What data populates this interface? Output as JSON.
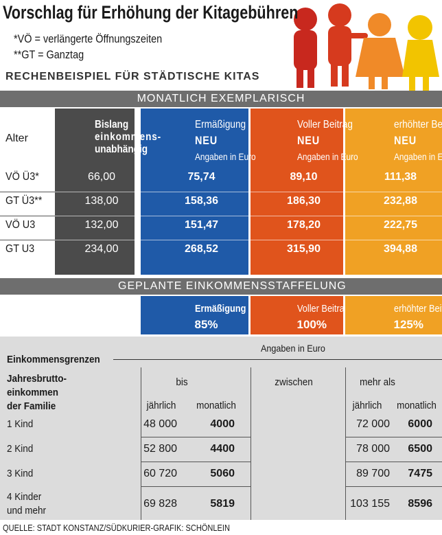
{
  "header": {
    "title": "Vorschlag für Erhöhung der Kitagebühren",
    "notes": [
      "*VÖ = verlängerte Öffnungszeiten",
      "**GT =  Ganztag"
    ],
    "subtitle": "RECHENBEISPIEL FÜR STÄDTISCHE KITAS"
  },
  "table1": {
    "banner": "MONATLICH EXEMPLARISCH",
    "alter": "Alter",
    "columns": [
      {
        "lines": [
          "Bislang",
          "einkommens-",
          "unabhängig"
        ]
      },
      {
        "lines": [
          "Ermäßigung",
          "NEU"
        ],
        "unit": "Angaben in Euro"
      },
      {
        "lines": [
          "Voller Beitrag",
          "NEU"
        ],
        "unit": "Angaben in Euro"
      },
      {
        "lines": [
          "erhöhter Beitrag",
          "NEU"
        ],
        "unit": "Angaben in Euro"
      }
    ],
    "rows": [
      [
        "VÖ Ü3*",
        "66,00",
        "75,74",
        "89,10",
        "111,38"
      ],
      [
        "GT Ü3**",
        "138,00",
        "158,36",
        "186,30",
        "232,88"
      ],
      [
        "VÖ U3",
        "132,00",
        "151,47",
        "178,20",
        "222,75"
      ],
      [
        "GT U3",
        "234,00",
        "268,52",
        "315,90",
        "394,88"
      ]
    ]
  },
  "table2": {
    "banner": "GEPLANTE EINKOMMENSSTAFFELUNG",
    "boxes": [
      {
        "name": "Ermäßigung",
        "pct": "85%"
      },
      {
        "name": "Voller Beitrag",
        "pct": "100%"
      },
      {
        "name": "erhöhter Beitrag",
        "pct": "125%"
      }
    ]
  },
  "income": {
    "unit": "Angaben in Euro",
    "title": "Einkommensgrenzen",
    "rowhead": [
      "Jahresbrutto-",
      "einkommen",
      "der Familie"
    ],
    "groups": [
      "bis",
      "zwischen",
      "mehr als"
    ],
    "subcols": [
      "jährlich",
      "monatlich",
      "jährlich",
      "monatlich"
    ],
    "rows": [
      {
        "label": [
          "1 Kind"
        ],
        "values": [
          "48 000",
          "4000",
          "72 000",
          "6000"
        ]
      },
      {
        "label": [
          "2 Kind"
        ],
        "values": [
          "52 800",
          "4400",
          "78 000",
          "6500"
        ]
      },
      {
        "label": [
          "3 Kind"
        ],
        "values": [
          "60 720",
          "5060",
          "89 700",
          "7475"
        ]
      },
      {
        "label": [
          "4 Kinder",
          "und mehr"
        ],
        "values": [
          "69 828",
          "5819",
          "103 155",
          "8596"
        ]
      }
    ]
  },
  "footer": "QUELLE: STADT KONSTANZ/SÜDKURIER-GRAFIK: SCHÖNLEIN"
}
